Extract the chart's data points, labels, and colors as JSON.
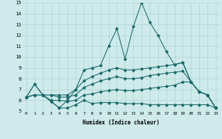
{
  "xlabel": "Humidex (Indice chaleur)",
  "bg_color": "#ceeaea",
  "grid_color": "#aed4d4",
  "line_color": "#1a6b6b",
  "xlim": [
    -0.5,
    23.5
  ],
  "ylim": [
    5,
    15
  ],
  "xticks": [
    0,
    1,
    2,
    3,
    4,
    5,
    6,
    7,
    8,
    9,
    10,
    11,
    12,
    13,
    14,
    15,
    16,
    17,
    18,
    19,
    20,
    21,
    22,
    23
  ],
  "yticks": [
    5,
    6,
    7,
    8,
    9,
    10,
    11,
    12,
    13,
    14,
    15
  ],
  "series": [
    [
      6.3,
      7.5,
      6.5,
      5.9,
      5.3,
      6.0,
      7.0,
      8.8,
      9.0,
      9.2,
      11.0,
      12.6,
      9.8,
      12.8,
      15.0,
      13.2,
      12.0,
      10.5,
      9.3,
      9.5,
      7.7,
      6.8,
      6.5,
      5.3
    ],
    [
      6.3,
      7.5,
      6.5,
      6.5,
      6.5,
      6.5,
      7.0,
      7.8,
      8.2,
      8.5,
      8.8,
      9.0,
      8.8,
      8.8,
      8.9,
      9.0,
      9.1,
      9.2,
      9.3,
      9.5,
      7.7,
      6.8,
      6.5,
      5.3
    ],
    [
      6.3,
      6.5,
      6.5,
      6.5,
      6.3,
      6.3,
      6.5,
      7.2,
      7.5,
      7.8,
      8.0,
      8.2,
      8.0,
      8.0,
      8.1,
      8.3,
      8.4,
      8.5,
      8.6,
      8.7,
      7.7,
      6.8,
      6.5,
      5.3
    ],
    [
      6.3,
      6.5,
      6.5,
      6.0,
      6.0,
      5.9,
      6.0,
      6.5,
      6.6,
      6.8,
      6.9,
      7.0,
      6.9,
      6.9,
      7.0,
      7.1,
      7.2,
      7.3,
      7.4,
      7.7,
      7.7,
      6.8,
      6.5,
      5.3
    ],
    [
      6.3,
      6.5,
      6.5,
      5.9,
      5.3,
      5.3,
      5.6,
      6.0,
      5.7,
      5.8,
      5.8,
      5.8,
      5.7,
      5.7,
      5.7,
      5.6,
      5.6,
      5.6,
      5.6,
      5.6,
      5.6,
      5.6,
      5.6,
      5.3
    ]
  ]
}
